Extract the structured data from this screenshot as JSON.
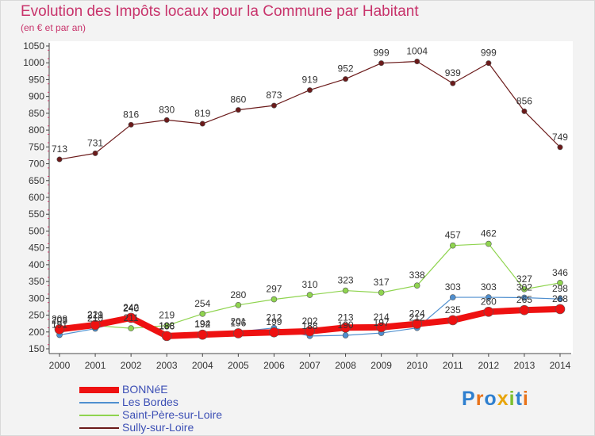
{
  "title": "Evolution des Impôts locaux pour la Commune par Habitant",
  "subtitle": "(en € et par an)",
  "logo": {
    "text": "Proxiti",
    "colors": [
      "#2e7fcf",
      "#e8731a",
      "#2e7fcf",
      "#e8a50c",
      "#7cbf2e",
      "#2e7fcf",
      "#e8731a"
    ]
  },
  "chart_data": {
    "type": "line",
    "x": [
      "2000",
      "2001",
      "2002",
      "2003",
      "2004",
      "2005",
      "2006",
      "2007",
      "2008",
      "2009",
      "2010",
      "2011",
      "2012",
      "2013",
      "2014"
    ],
    "ylim": [
      150,
      1050
    ],
    "yticks": [
      150,
      200,
      250,
      300,
      350,
      400,
      450,
      500,
      550,
      600,
      650,
      700,
      750,
      800,
      850,
      900,
      950,
      1000,
      1050
    ],
    "grid": false,
    "legend_position": "bottom-left",
    "series": [
      {
        "name": "BONNéE",
        "color": "#ee1111",
        "values": [
          208,
          221,
          242,
          188,
          192,
          196,
          199,
          202,
          213,
          214,
          224,
          235,
          260,
          265,
          268
        ]
      },
      {
        "name": "Les Bordes",
        "color": "#4f8fcf",
        "values": [
          191,
          210,
          240,
          186,
          194,
          201,
          212,
          188,
          190,
          197,
          212,
          303,
          303,
          302,
          298
        ]
      },
      {
        "name": "Saint-Père-sur-Loire",
        "color": "#8fd44f",
        "values": [
          203,
          219,
          211,
          219,
          254,
          280,
          297,
          310,
          323,
          317,
          338,
          457,
          462,
          327,
          346
        ]
      },
      {
        "name": "Sully-sur-Loire",
        "color": "#6b1a1a",
        "values": [
          713,
          731,
          816,
          830,
          819,
          860,
          873,
          919,
          952,
          999,
          1004,
          939,
          999,
          856,
          749
        ]
      }
    ],
    "data_labels": [
      [
        "208",
        "221",
        "242",
        "188",
        "192",
        "196",
        "199",
        "202",
        "213",
        "214",
        "224",
        "235",
        "260",
        "265",
        "268"
      ],
      [
        "191",
        "210",
        "240",
        "186",
        "194",
        "201",
        "212",
        "188",
        "190",
        "197",
        "212",
        "303",
        "303",
        "302",
        "298"
      ],
      [
        "203",
        "219",
        "211",
        "219",
        "254",
        "280",
        "297",
        "310",
        "323",
        "317",
        "338",
        "457",
        "462",
        "327",
        "346"
      ],
      [
        "713",
        "731",
        "816",
        "830",
        "819",
        "860",
        "873",
        "919",
        "952",
        "999",
        "1004",
        "939",
        "999",
        "856",
        "749"
      ]
    ]
  }
}
